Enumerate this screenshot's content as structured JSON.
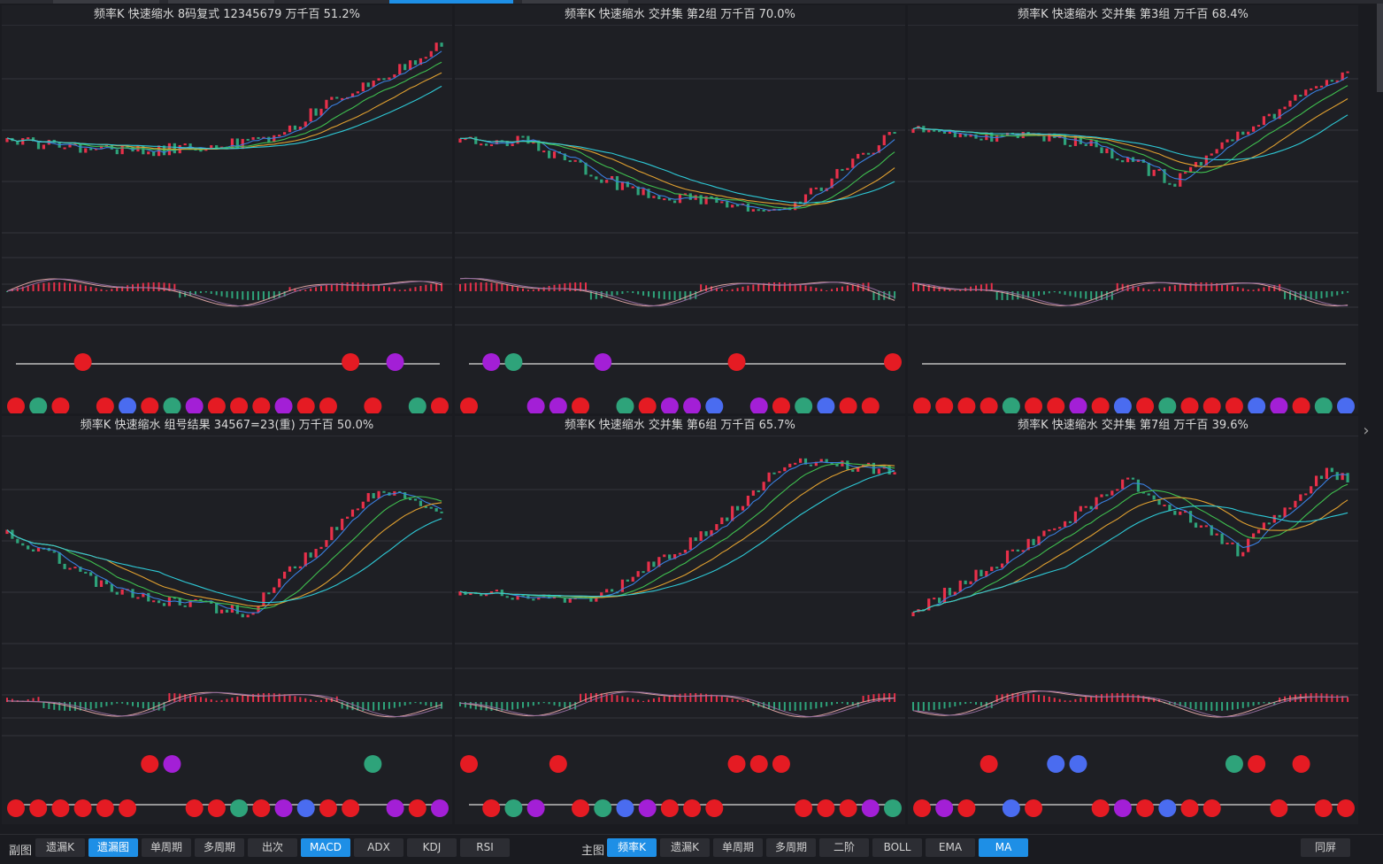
{
  "panels": [
    {
      "title": "频率K  快速缩水  8码复式 12345679  万千百  51.2%"
    },
    {
      "title": "频率K  快速缩水  交并集 第2组  万千百  70.0%"
    },
    {
      "title": "频率K  快速缩水  交并集 第3组  万千百  68.4%"
    },
    {
      "title": "频率K  快速缩水  组号结果 34567=23(重)  万千百  50.0%"
    },
    {
      "title": "频率K  快速缩水  交并集 第6组  万千百  65.7%"
    },
    {
      "title": "频率K  快速缩水  交并集 第7组  万千百  39.6%"
    }
  ],
  "bottom_bar": {
    "left_label": "副图",
    "left_buttons": [
      {
        "label": "遗漏K",
        "active": false
      },
      {
        "label": "遗漏图",
        "active": true
      },
      {
        "label": "单周期",
        "active": false
      },
      {
        "label": "多周期",
        "active": false
      },
      {
        "label": "出次",
        "active": false
      },
      {
        "label": "MACD",
        "active": true
      },
      {
        "label": "ADX",
        "active": false
      },
      {
        "label": "KDJ",
        "active": false
      },
      {
        "label": "RSI",
        "active": false
      }
    ],
    "right_label": "主图",
    "right_buttons": [
      {
        "label": "频率K",
        "active": true
      },
      {
        "label": "遗漏K",
        "active": false
      },
      {
        "label": "单周期",
        "active": false
      },
      {
        "label": "多周期",
        "active": false
      },
      {
        "label": "二阶",
        "active": false
      },
      {
        "label": "BOLL",
        "active": false
      },
      {
        "label": "EMA",
        "active": false
      },
      {
        "label": "MA",
        "active": true
      }
    ],
    "far_right_button": "同屏"
  },
  "colors": {
    "up": "#e8304a",
    "down": "#2ea37a",
    "ma5": "#3a7fe0",
    "ma10": "#3fbf4f",
    "ma20": "#e0a030",
    "ma30": "#2ec9d6",
    "accent": "#1e8fe6"
  },
  "icons": {
    "scroll": "chevron-right-icon"
  }
}
